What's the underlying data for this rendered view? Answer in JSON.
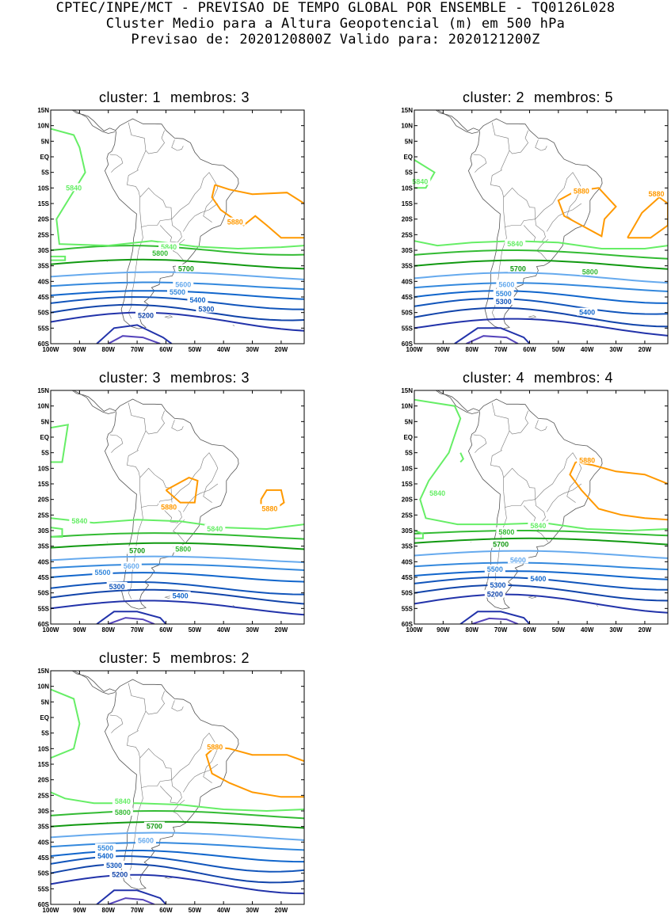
{
  "header": {
    "line1": "CPTEC/INPE/MCT - PREVISAO DE TEMPO GLOBAL POR ENSEMBLE - TQ0126L028",
    "line2": "Cluster Medio para a Altura Geopotencial (m) em 500 hPa",
    "line3": "Previsao de: 2020120800Z    Valido para: 2020121200Z"
  },
  "axes": {
    "lat_labels": [
      "15N",
      "10N",
      "5N",
      "EQ",
      "5S",
      "10S",
      "15S",
      "20S",
      "25S",
      "30S",
      "35S",
      "40S",
      "45S",
      "50S",
      "55S",
      "60S"
    ],
    "lon_labels": [
      "100W",
      "90W",
      "80W",
      "70W",
      "60W",
      "50W",
      "40W",
      "30W",
      "20W"
    ]
  },
  "colors": {
    "5880": "#ff9900",
    "5840": "#66ee66",
    "5800": "#33bb33",
    "5700": "#119911",
    "5600": "#66aaee",
    "5500": "#3388dd",
    "5400": "#1166cc",
    "5300": "#1155bb",
    "5200": "#1144aa",
    "low1": "#2233aa",
    "low2": "#5544bb",
    "coast": "#888888"
  },
  "panels": [
    {
      "cluster_label": "cluster: 1",
      "members_label": "membros: 3",
      "labels": [
        {
          "text": "5840",
          "lev": "5840",
          "lon": -92,
          "lat": -10
        },
        {
          "text": "5880",
          "lev": "5880",
          "lon": -36,
          "lat": -21
        },
        {
          "text": "5840",
          "lev": "5840",
          "lon": -59,
          "lat": -29
        },
        {
          "text": "5800",
          "lev": "5800",
          "lon": -62,
          "lat": -31
        },
        {
          "text": "5700",
          "lev": "5700",
          "lon": -53,
          "lat": -36
        },
        {
          "text": "5600",
          "lev": "5600",
          "lon": -54,
          "lat": -41
        },
        {
          "text": "5500",
          "lev": "5500",
          "lon": -56,
          "lat": -43.5
        },
        {
          "text": "5400",
          "lev": "5400",
          "lon": -49,
          "lat": -46
        },
        {
          "text": "5300",
          "lev": "5300",
          "lon": -46,
          "lat": -49
        },
        {
          "text": "5200",
          "lev": "5200",
          "lon": -67,
          "lat": -51
        }
      ]
    },
    {
      "cluster_label": "cluster: 2",
      "members_label": "membros: 5",
      "labels": [
        {
          "text": "5840",
          "lev": "5840",
          "lon": -98,
          "lat": -8
        },
        {
          "text": "5880",
          "lev": "5880",
          "lon": -42,
          "lat": -11
        },
        {
          "text": "5880",
          "lev": "5880",
          "lon": -16,
          "lat": -12
        },
        {
          "text": "5840",
          "lev": "5840",
          "lon": -65,
          "lat": -28
        },
        {
          "text": "5700",
          "lev": "5700",
          "lon": -64,
          "lat": -36
        },
        {
          "text": "5800",
          "lev": "5800",
          "lon": -39,
          "lat": -37
        },
        {
          "text": "5600",
          "lev": "5600",
          "lon": -68,
          "lat": -41
        },
        {
          "text": "5500",
          "lev": "5500",
          "lon": -69,
          "lat": -44
        },
        {
          "text": "5300",
          "lev": "5300",
          "lon": -69,
          "lat": -46.5
        },
        {
          "text": "5400",
          "lev": "5400",
          "lon": -40,
          "lat": -50
        }
      ]
    },
    {
      "cluster_label": "cluster: 3",
      "members_label": "membros: 3",
      "labels": [
        {
          "text": "5880",
          "lev": "5880",
          "lon": -59,
          "lat": -22.5
        },
        {
          "text": "5880",
          "lev": "5880",
          "lon": -24,
          "lat": -23
        },
        {
          "text": "5840",
          "lev": "5840",
          "lon": -90,
          "lat": -27
        },
        {
          "text": "5840",
          "lev": "5840",
          "lon": -43,
          "lat": -29.5
        },
        {
          "text": "5700",
          "lev": "5700",
          "lon": -70,
          "lat": -36.5
        },
        {
          "text": "5800",
          "lev": "5800",
          "lon": -54,
          "lat": -36
        },
        {
          "text": "5600",
          "lev": "5600",
          "lon": -72,
          "lat": -41.5
        },
        {
          "text": "5500",
          "lev": "5500",
          "lon": -82,
          "lat": -43.5
        },
        {
          "text": "5300",
          "lev": "5300",
          "lon": -77,
          "lat": -48
        },
        {
          "text": "5400",
          "lev": "5400",
          "lon": -55,
          "lat": -51
        }
      ]
    },
    {
      "cluster_label": "cluster: 4",
      "members_label": "membros: 4",
      "labels": [
        {
          "text": "5880",
          "lev": "5880",
          "lon": -40,
          "lat": -7.5
        },
        {
          "text": "5840",
          "lev": "5840",
          "lon": -92,
          "lat": -18
        },
        {
          "text": "5840",
          "lev": "5840",
          "lon": -57,
          "lat": -28.5
        },
        {
          "text": "5800",
          "lev": "5800",
          "lon": -68,
          "lat": -30.5
        },
        {
          "text": "5700",
          "lev": "5700",
          "lon": -70,
          "lat": -34.5
        },
        {
          "text": "5600",
          "lev": "5600",
          "lon": -64,
          "lat": -39.5
        },
        {
          "text": "5500",
          "lev": "5500",
          "lon": -72,
          "lat": -42.5
        },
        {
          "text": "5400",
          "lev": "5400",
          "lon": -57,
          "lat": -45.5
        },
        {
          "text": "5300",
          "lev": "5300",
          "lon": -71,
          "lat": -47.5
        },
        {
          "text": "5200",
          "lev": "5200",
          "lon": -72,
          "lat": -50.5
        }
      ]
    },
    {
      "cluster_label": "cluster: 5",
      "members_label": "membros: 2",
      "labels": [
        {
          "text": "5880",
          "lev": "5880",
          "lon": -43,
          "lat": -9.5
        },
        {
          "text": "5840",
          "lev": "5840",
          "lon": -75,
          "lat": -27
        },
        {
          "text": "5800",
          "lev": "5800",
          "lon": -75,
          "lat": -30.5
        },
        {
          "text": "5700",
          "lev": "5700",
          "lon": -64,
          "lat": -35
        },
        {
          "text": "5600",
          "lev": "5600",
          "lon": -67,
          "lat": -39.5
        },
        {
          "text": "5500",
          "lev": "5500",
          "lon": -81,
          "lat": -42
        },
        {
          "text": "5400",
          "lev": "5400",
          "lon": -81,
          "lat": -44.5
        },
        {
          "text": "5300",
          "lev": "5300",
          "lon": -78,
          "lat": -47.5
        },
        {
          "text": "5200",
          "lev": "5200",
          "lon": -76,
          "lat": -50.5
        }
      ]
    }
  ]
}
